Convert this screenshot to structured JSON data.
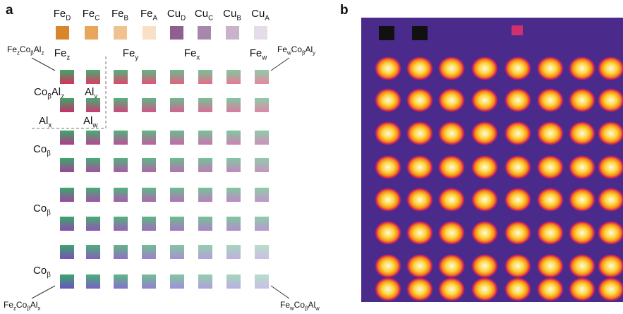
{
  "panels": {
    "a": "a",
    "b": "b"
  },
  "legend": [
    {
      "parts": [
        {
          "t": "Fe",
          "s": "D"
        }
      ],
      "color": "#d9862a"
    },
    {
      "parts": [
        {
          "t": "Fe",
          "s": "C"
        }
      ],
      "color": "#e6a65c"
    },
    {
      "parts": [
        {
          "t": "Fe",
          "s": "B"
        }
      ],
      "color": "#efc28f"
    },
    {
      "parts": [
        {
          "t": "Fe",
          "s": "A"
        }
      ],
      "color": "#f8dfc6"
    },
    {
      "parts": [
        {
          "t": "Cu",
          "s": "D"
        }
      ],
      "color": "#8e5f8f"
    },
    {
      "parts": [
        {
          "t": "Cu",
          "s": "C"
        }
      ],
      "color": "#a888aa"
    },
    {
      "parts": [
        {
          "t": "Cu",
          "s": "B"
        }
      ],
      "color": "#c8b3cb"
    },
    {
      "parts": [
        {
          "t": "Cu",
          "s": "A"
        }
      ],
      "color": "#e6dbe8"
    }
  ],
  "column_labels": [
    {
      "parts": [
        {
          "t": "Fe",
          "s": "z"
        }
      ]
    },
    {
      "parts": [
        {
          "t": "Fe",
          "s": "y"
        }
      ]
    },
    {
      "parts": [
        {
          "t": "Fe",
          "s": "x"
        }
      ]
    },
    {
      "parts": [
        {
          "t": "Fe",
          "s": "w"
        }
      ]
    }
  ],
  "row_labels": [
    {
      "parts": [
        {
          "t": "Co",
          "s": "β"
        }
      ]
    },
    {
      "parts": [
        {
          "t": "Co",
          "s": "β"
        }
      ]
    },
    {
      "parts": [
        {
          "t": "Co",
          "s": "β"
        }
      ]
    }
  ],
  "inset_labels": [
    {
      "parts": [
        {
          "t": "Co",
          "s": "β"
        },
        {
          "t": "Al",
          "s": "z"
        }
      ]
    },
    {
      "parts": [
        {
          "t": "Al",
          "s": "y"
        }
      ]
    },
    {
      "parts": [
        {
          "t": "Al",
          "s": "x"
        }
      ]
    },
    {
      "parts": [
        {
          "t": "Al",
          "s": "w"
        }
      ]
    }
  ],
  "corner_labels": [
    {
      "parts": [
        {
          "t": "Fe",
          "s": "z"
        },
        {
          "t": "Co",
          "s": "β"
        },
        {
          "t": "Al",
          "s": "z"
        }
      ]
    },
    {
      "parts": [
        {
          "t": "Fe",
          "s": "w"
        },
        {
          "t": "Co",
          "s": "β"
        },
        {
          "t": "Al",
          "s": "y"
        }
      ]
    },
    {
      "parts": [
        {
          "t": "Fe",
          "s": "z"
        },
        {
          "t": "Co",
          "s": "β"
        },
        {
          "t": "Al",
          "s": "x"
        }
      ]
    },
    {
      "parts": [
        {
          "t": "Fe",
          "s": "w"
        },
        {
          "t": "Co",
          "s": "β"
        },
        {
          "t": "Al",
          "s": "w"
        }
      ]
    }
  ]
}
